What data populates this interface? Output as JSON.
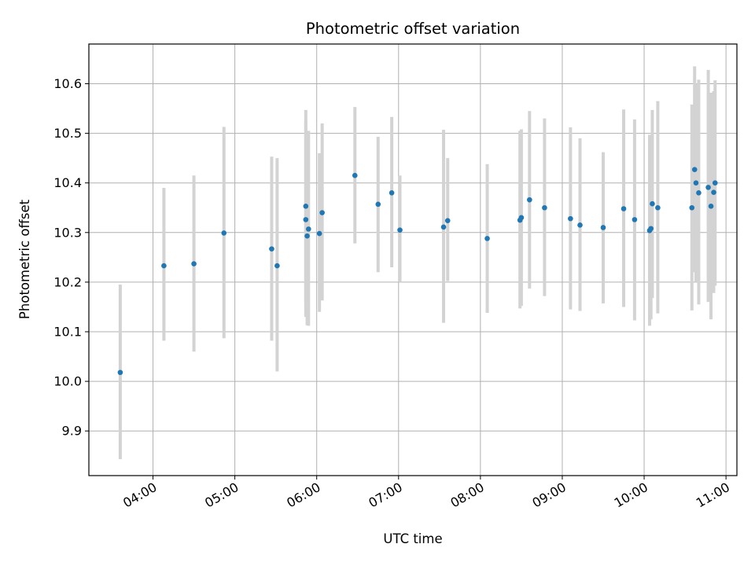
{
  "chart_data": {
    "type": "scatter",
    "title": "Photometric offset variation",
    "xlabel": "UTC time",
    "ylabel": "Photometric offset",
    "x_axis": "time",
    "xlim": [
      "03:13",
      "11:08"
    ],
    "ylim": [
      9.81,
      10.68
    ],
    "x_ticks": [
      "04:00",
      "05:00",
      "06:00",
      "07:00",
      "08:00",
      "09:00",
      "10:00",
      "11:00"
    ],
    "y_ticks": [
      "9.9",
      "10.0",
      "10.1",
      "10.2",
      "10.3",
      "10.4",
      "10.5",
      "10.6"
    ],
    "grid": true,
    "marker_color": "#1f77b4",
    "errorbar_color": "#d3d3d3",
    "series": [
      {
        "points": [
          {
            "x": "03:36",
            "y": 10.018,
            "lo": 9.843,
            "hi": 10.195
          },
          {
            "x": "04:08",
            "y": 10.233,
            "lo": 10.082,
            "hi": 10.39
          },
          {
            "x": "04:30",
            "y": 10.237,
            "lo": 10.06,
            "hi": 10.415
          },
          {
            "x": "04:52",
            "y": 10.299,
            "lo": 10.087,
            "hi": 10.513
          },
          {
            "x": "05:27",
            "y": 10.267,
            "lo": 10.082,
            "hi": 10.453
          },
          {
            "x": "05:31",
            "y": 10.233,
            "lo": 10.02,
            "hi": 10.45
          },
          {
            "x": "05:52",
            "y": 10.353,
            "lo": 10.16,
            "hi": 10.547
          },
          {
            "x": "05:52",
            "y": 10.326,
            "lo": 10.13,
            "hi": 10.525
          },
          {
            "x": "05:53",
            "y": 10.293,
            "lo": 10.113,
            "hi": 10.475
          },
          {
            "x": "05:54",
            "y": 10.307,
            "lo": 10.112,
            "hi": 10.505
          },
          {
            "x": "06:02",
            "y": 10.298,
            "lo": 10.14,
            "hi": 10.46
          },
          {
            "x": "06:04",
            "y": 10.34,
            "lo": 10.163,
            "hi": 10.52
          },
          {
            "x": "06:28",
            "y": 10.415,
            "lo": 10.278,
            "hi": 10.553
          },
          {
            "x": "06:45",
            "y": 10.357,
            "lo": 10.22,
            "hi": 10.493
          },
          {
            "x": "06:55",
            "y": 10.38,
            "lo": 10.23,
            "hi": 10.533
          },
          {
            "x": "07:01",
            "y": 10.305,
            "lo": 10.2,
            "hi": 10.415
          },
          {
            "x": "07:33",
            "y": 10.311,
            "lo": 10.118,
            "hi": 10.507
          },
          {
            "x": "07:36",
            "y": 10.324,
            "lo": 10.202,
            "hi": 10.45
          },
          {
            "x": "08:05",
            "y": 10.288,
            "lo": 10.138,
            "hi": 10.438
          },
          {
            "x": "08:29",
            "y": 10.325,
            "lo": 10.147,
            "hi": 10.505
          },
          {
            "x": "08:30",
            "y": 10.33,
            "lo": 10.152,
            "hi": 10.508
          },
          {
            "x": "08:36",
            "y": 10.366,
            "lo": 10.187,
            "hi": 10.545
          },
          {
            "x": "08:47",
            "y": 10.35,
            "lo": 10.172,
            "hi": 10.53
          },
          {
            "x": "09:06",
            "y": 10.328,
            "lo": 10.145,
            "hi": 10.512
          },
          {
            "x": "09:13",
            "y": 10.315,
            "lo": 10.142,
            "hi": 10.49
          },
          {
            "x": "09:30",
            "y": 10.31,
            "lo": 10.157,
            "hi": 10.462
          },
          {
            "x": "09:45",
            "y": 10.348,
            "lo": 10.15,
            "hi": 10.548
          },
          {
            "x": "09:53",
            "y": 10.326,
            "lo": 10.123,
            "hi": 10.528
          },
          {
            "x": "10:04",
            "y": 10.304,
            "lo": 10.112,
            "hi": 10.497
          },
          {
            "x": "10:05",
            "y": 10.308,
            "lo": 10.125,
            "hi": 10.493
          },
          {
            "x": "10:06",
            "y": 10.358,
            "lo": 10.168,
            "hi": 10.547
          },
          {
            "x": "10:10",
            "y": 10.35,
            "lo": 10.137,
            "hi": 10.565
          },
          {
            "x": "10:35",
            "y": 10.35,
            "lo": 10.143,
            "hi": 10.558
          },
          {
            "x": "10:37",
            "y": 10.427,
            "lo": 10.22,
            "hi": 10.635
          },
          {
            "x": "10:38",
            "y": 10.4,
            "lo": 10.2,
            "hi": 10.6
          },
          {
            "x": "10:40",
            "y": 10.38,
            "lo": 10.155,
            "hi": 10.608
          },
          {
            "x": "10:47",
            "y": 10.391,
            "lo": 10.16,
            "hi": 10.628
          },
          {
            "x": "10:49",
            "y": 10.353,
            "lo": 10.125,
            "hi": 10.582
          },
          {
            "x": "10:51",
            "y": 10.381,
            "lo": 10.178,
            "hi": 10.585
          },
          {
            "x": "10:52",
            "y": 10.4,
            "lo": 10.193,
            "hi": 10.607
          }
        ]
      }
    ]
  }
}
